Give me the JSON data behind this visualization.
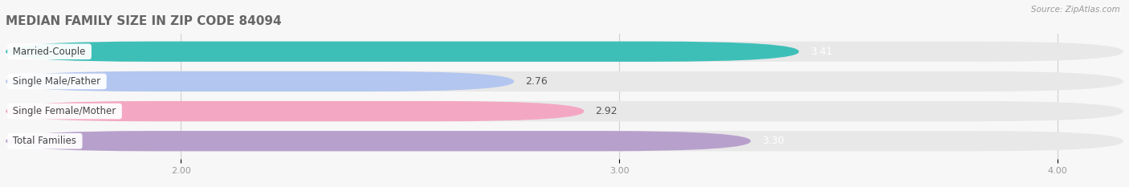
{
  "title": "MEDIAN FAMILY SIZE IN ZIP CODE 84094",
  "source": "Source: ZipAtlas.com",
  "categories": [
    "Married-Couple",
    "Single Male/Father",
    "Single Female/Mother",
    "Total Families"
  ],
  "values": [
    3.41,
    2.76,
    2.92,
    3.3
  ],
  "bar_colors": [
    "#3dbfb8",
    "#b3c6f0",
    "#f4a7c3",
    "#b8a0cc"
  ],
  "bar_background": "#e8e8e8",
  "background_color": "#f7f7f7",
  "xmin": 1.6,
  "xmax": 4.15,
  "data_min": 2.0,
  "xticks": [
    2.0,
    3.0,
    4.0
  ],
  "xtick_labels": [
    "2.00",
    "3.00",
    "4.00"
  ],
  "title_fontsize": 11,
  "label_fontsize": 8.5,
  "value_fontsize": 9,
  "bar_height": 0.68,
  "value_text_colors": [
    "white",
    "#666666",
    "#666666",
    "white"
  ]
}
